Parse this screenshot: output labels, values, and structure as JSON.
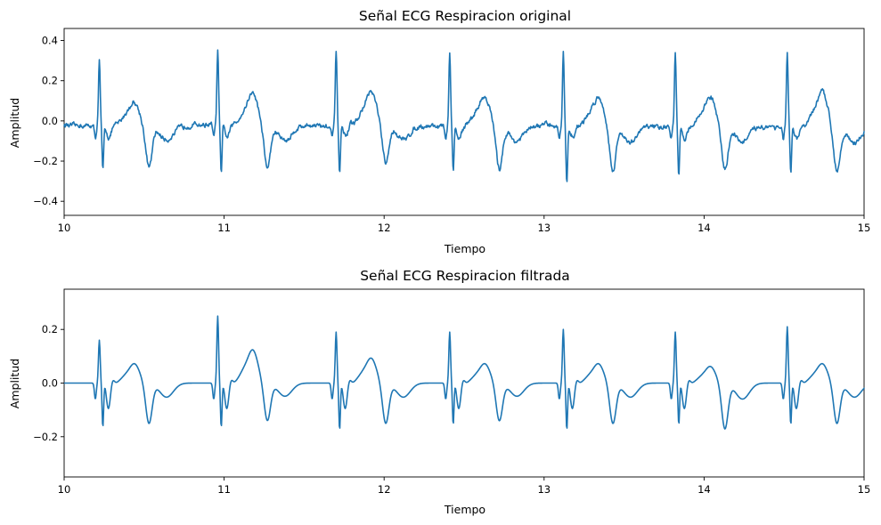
{
  "chart_data": [
    {
      "type": "line",
      "title": "Señal ECG Respiracion original",
      "xlabel": "Tiempo",
      "ylabel": "Amplitud",
      "xlim": [
        10,
        15
      ],
      "ylim": [
        -0.47,
        0.46
      ],
      "x_ticks": [
        10,
        11,
        12,
        13,
        14,
        15
      ],
      "y_ticks": [
        -0.4,
        -0.2,
        0.0,
        0.2,
        0.4
      ],
      "y_tick_labels": [
        "−0.4",
        "−0.2",
        "0.0",
        "0.2",
        "0.4"
      ],
      "grid": false,
      "color": "#1f77b4",
      "series": [
        {
          "beats": [
            10.22,
            10.96,
            11.7,
            12.41,
            13.12,
            13.82,
            14.52
          ],
          "r_peak_values": [
            0.32,
            0.37,
            0.37,
            0.36,
            0.37,
            0.36,
            0.36
          ],
          "s_trough_values": [
            -0.23,
            -0.25,
            -0.23,
            -0.23,
            -0.29,
            -0.25,
            -0.23
          ],
          "t_wave_values": [
            0.11,
            0.16,
            0.16,
            0.14,
            0.14,
            0.14,
            0.16
          ],
          "post_t_trough_values": [
            -0.21,
            -0.21,
            -0.19,
            -0.21,
            -0.22,
            -0.21,
            -0.22
          ],
          "start_value": -0.02,
          "end_value": -0.03
        }
      ]
    },
    {
      "type": "line",
      "title": "Señal ECG Respiracion filtrada",
      "xlabel": "Tiempo",
      "ylabel": "Amplitud",
      "xlim": [
        10,
        15
      ],
      "ylim": [
        -0.35,
        0.35
      ],
      "x_ticks": [
        10,
        11,
        12,
        13,
        14,
        15
      ],
      "y_ticks": [
        -0.2,
        0.0,
        0.2
      ],
      "y_tick_labels": [
        "−0.2",
        "0.0",
        "0.2"
      ],
      "grid": false,
      "color": "#1f77b4",
      "series": [
        {
          "beats": [
            10.22,
            10.96,
            11.7,
            12.41,
            13.12,
            13.82,
            14.52
          ],
          "r_peak_values": [
            0.16,
            0.25,
            0.19,
            0.19,
            0.2,
            0.19,
            0.21
          ],
          "s_trough_values": [
            -0.17,
            -0.17,
            -0.18,
            -0.16,
            -0.18,
            -0.16,
            -0.16
          ],
          "t_wave_values": [
            0.07,
            0.12,
            0.09,
            0.07,
            0.07,
            0.06,
            0.07
          ],
          "post_t_trough_values": [
            -0.15,
            -0.14,
            -0.15,
            -0.14,
            -0.15,
            -0.17,
            -0.15
          ],
          "start_value": 0.0,
          "end_value": 0.0
        }
      ]
    }
  ]
}
